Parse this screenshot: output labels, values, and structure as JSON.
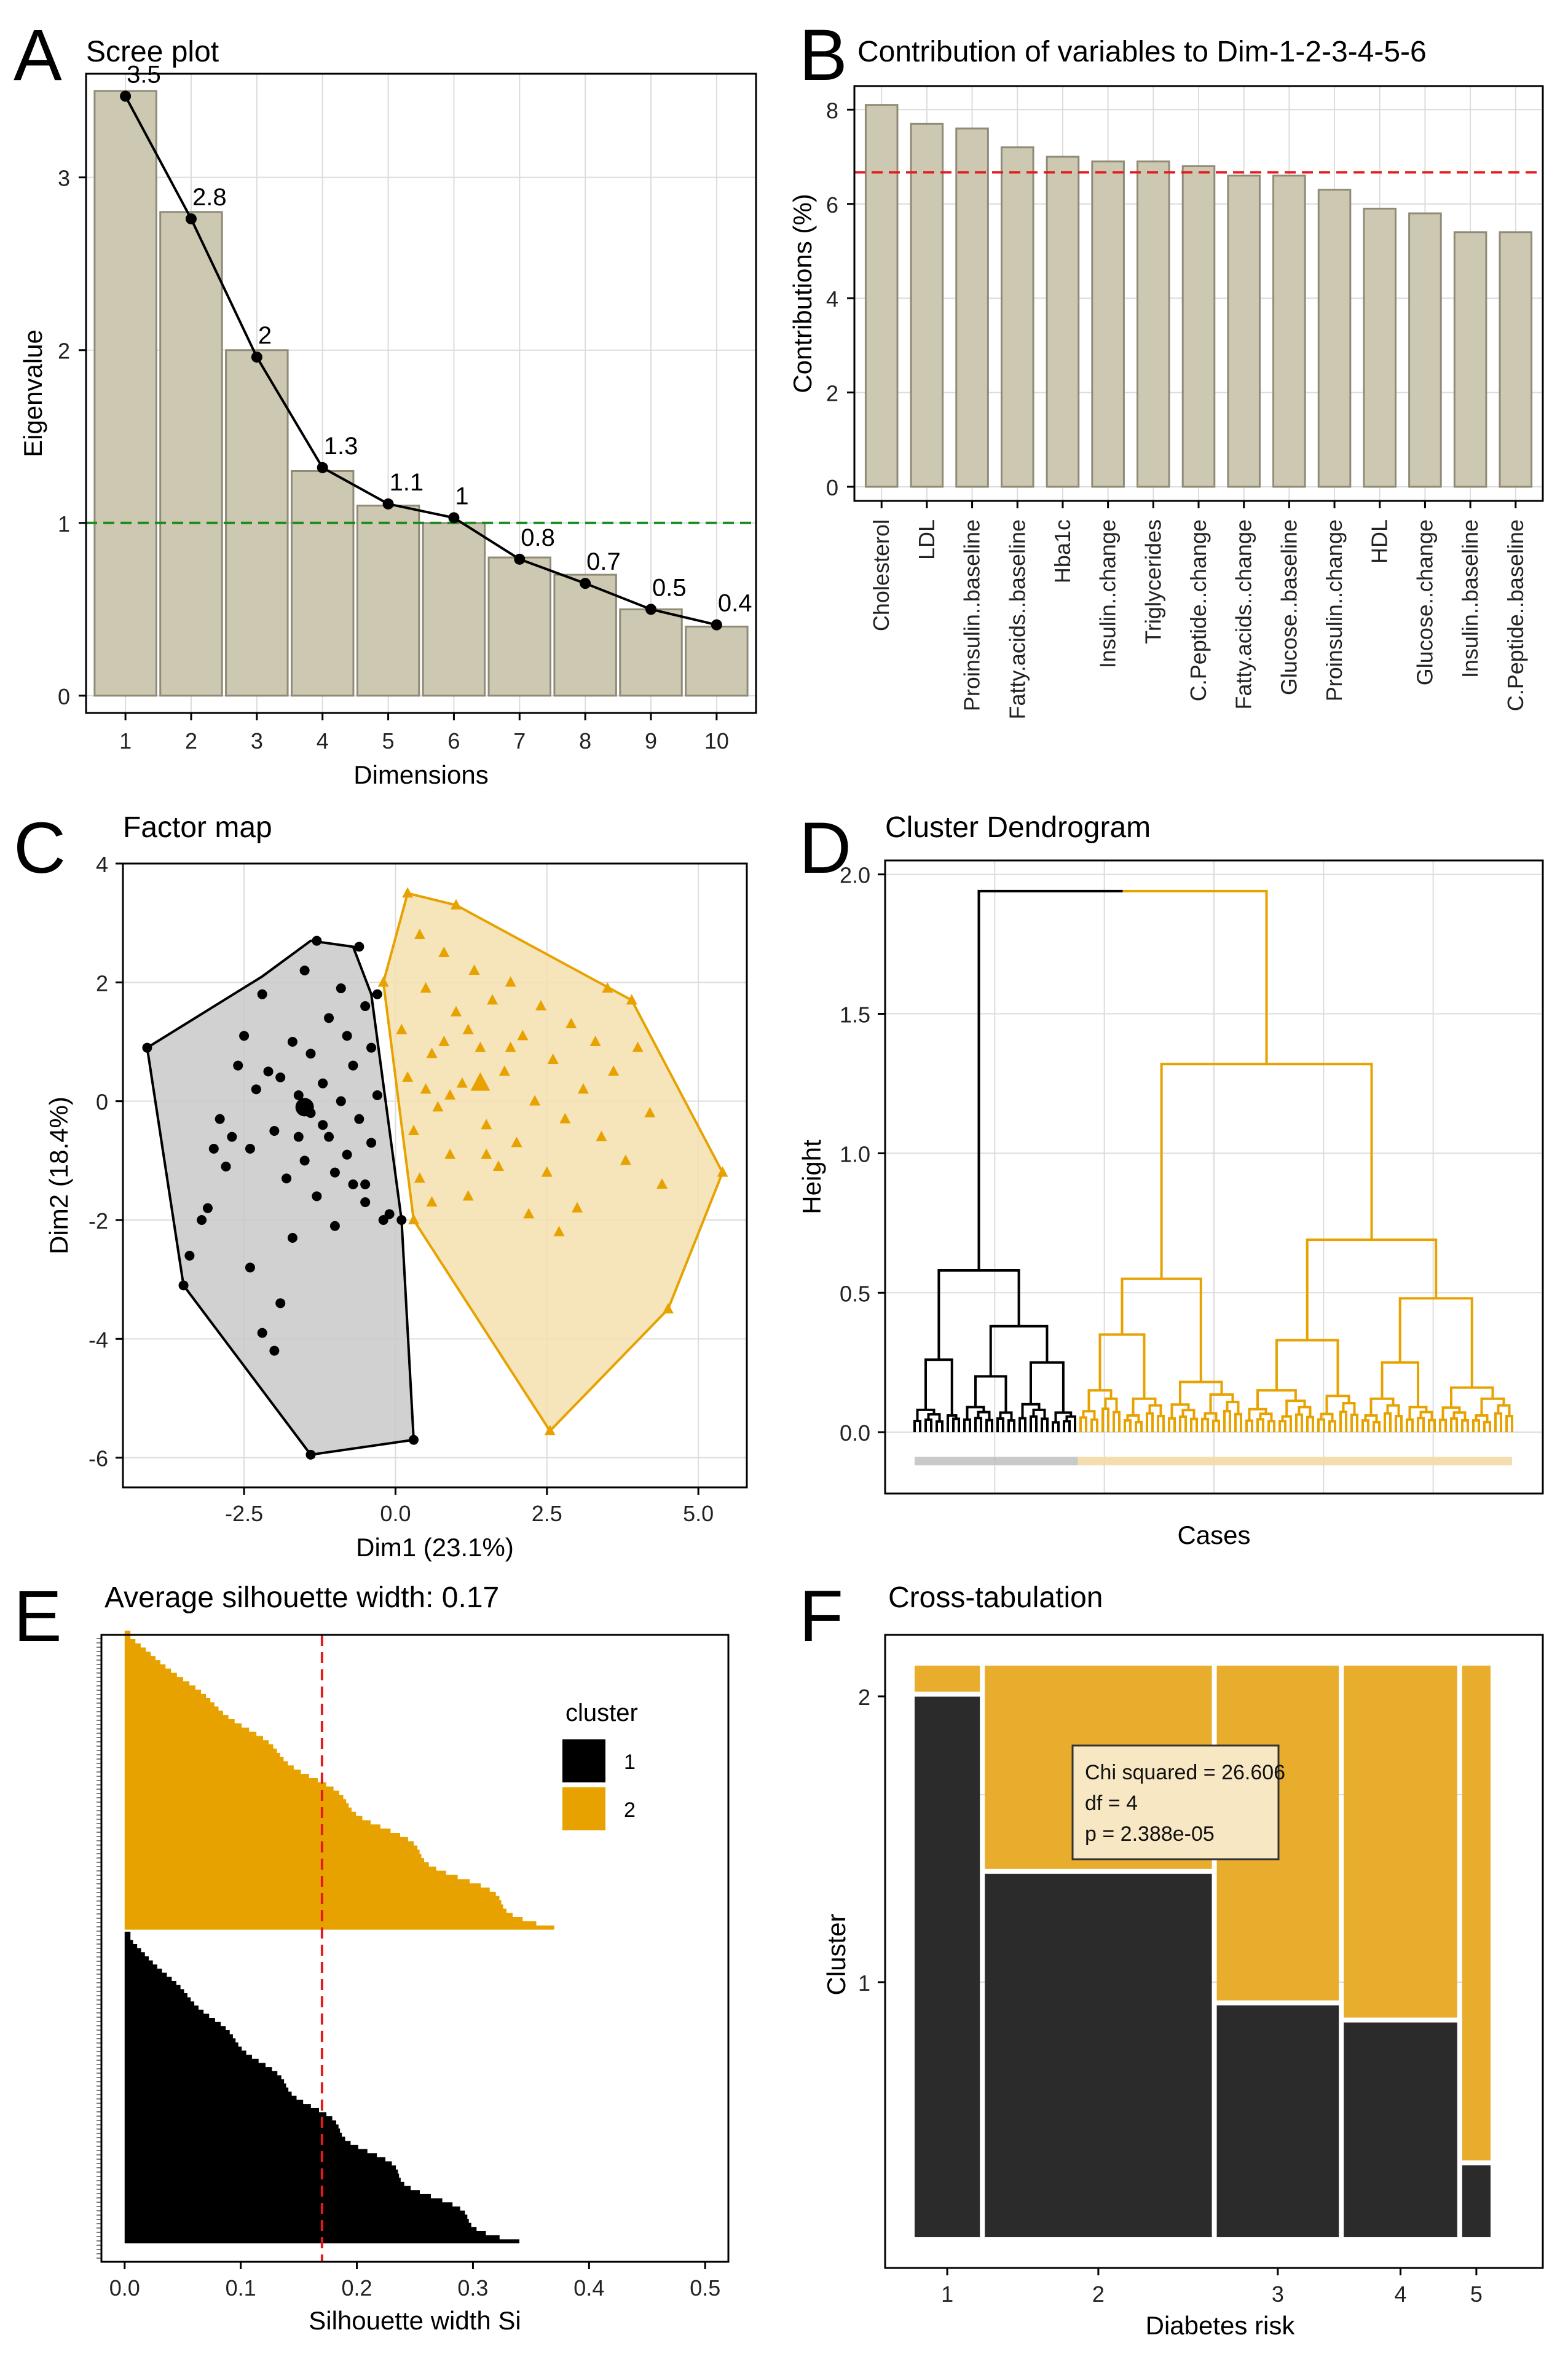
{
  "colors": {
    "bar": "#cdc8b1",
    "bar_stroke": "#8f8b78",
    "gold": "#e8a200",
    "gold_fill": "#f5dfae",
    "black": "#000000",
    "grey_fill": "#c9c9c9",
    "mosaic_dark": "#2b2b2b",
    "mosaic_gold": "#e8ad2c",
    "red": "#e41a1c",
    "green": "#1a8a1a",
    "grid": "#dcdcdc"
  },
  "panels": [
    {
      "letter": "A",
      "chart_data": {
        "type": "bar",
        "title": "Scree plot",
        "xlabel": "Dimensions",
        "ylabel": "Eigenvalue",
        "categories": [
          "1",
          "2",
          "3",
          "4",
          "5",
          "6",
          "7",
          "8",
          "9",
          "10"
        ],
        "values": [
          3.5,
          2.8,
          2.0,
          1.3,
          1.1,
          1.0,
          0.8,
          0.7,
          0.5,
          0.4
        ],
        "value_labels": [
          "3.5",
          "2.8",
          "2",
          "1.3",
          "1.1",
          "1",
          "0.8",
          "0.7",
          "0.5",
          "0.4"
        ],
        "line": [
          3.47,
          2.76,
          1.96,
          1.32,
          1.11,
          1.03,
          0.79,
          0.65,
          0.5,
          0.41
        ],
        "reference_line": 1.0,
        "yticks": [
          "0",
          "1",
          "2",
          "3"
        ],
        "ylim": [
          -0.1,
          3.6
        ]
      }
    },
    {
      "letter": "B",
      "chart_data": {
        "type": "bar",
        "title": "Contribution of variables to Dim-1-2-3-4-5-6",
        "xlabel": "",
        "ylabel": "Contributions (%)",
        "categories": [
          "Cholesterol",
          "LDL",
          "Proinsulin..baseline",
          "Fatty.acids..baseline",
          "Hba1c",
          "Insulin..change",
          "Triglycerides",
          "C.Peptide..change",
          "Fatty.acids..change",
          "Glucose..baseline",
          "Proinsulin..change",
          "HDL",
          "Glucose..change",
          "Insulin..baseline",
          "C.Peptide..baseline"
        ],
        "values": [
          8.1,
          7.7,
          7.6,
          7.2,
          7.0,
          6.9,
          6.9,
          6.8,
          6.6,
          6.6,
          6.3,
          5.9,
          5.8,
          5.4,
          5.4
        ],
        "reference_line": 6.67,
        "yticks": [
          "0",
          "2",
          "4",
          "6",
          "8"
        ],
        "ylim": [
          -0.3,
          8.5
        ]
      }
    },
    {
      "letter": "C",
      "chart_data": {
        "type": "scatter",
        "title": "Factor map",
        "xlabel": "Dim1 (23.1%)",
        "ylabel": "Dim2 (18.4%)",
        "xticks": [
          "-2.5",
          "0.0",
          "2.5",
          "5.0"
        ],
        "yticks": [
          "-6",
          "-4",
          "-2",
          "0",
          "2",
          "4"
        ],
        "xlim": [
          -4.5,
          5.8
        ],
        "ylim": [
          -6.5,
          4.0
        ],
        "series": [
          {
            "name": "1",
            "marker": "circle",
            "hull": [
              [
                -4.1,
                0.9
              ],
              [
                -2.2,
                2.1
              ],
              [
                -1.4,
                2.7
              ],
              [
                -0.7,
                2.6
              ],
              [
                -0.4,
                1.8
              ],
              [
                0.1,
                -2.0
              ],
              [
                0.3,
                -5.7
              ],
              [
                -1.4,
                -5.95
              ],
              [
                -3.5,
                -3.1
              ]
            ],
            "centroid": [
              -1.5,
              -0.1
            ],
            "points": [
              [
                -4.1,
                0.9
              ],
              [
                -3.5,
                -3.1
              ],
              [
                -3.4,
                -2.6
              ],
              [
                -3.1,
                -1.8
              ],
              [
                -3.0,
                -0.8
              ],
              [
                -2.9,
                -0.3
              ],
              [
                -2.8,
                -1.1
              ],
              [
                -2.6,
                0.6
              ],
              [
                -2.5,
                1.1
              ],
              [
                -2.4,
                -0.8
              ],
              [
                -2.3,
                0.2
              ],
              [
                -2.2,
                1.8
              ],
              [
                -2.2,
                -3.9
              ],
              [
                -2.0,
                -0.5
              ],
              [
                -1.9,
                0.4
              ],
              [
                -1.8,
                -1.3
              ],
              [
                -1.7,
                1.0
              ],
              [
                -1.7,
                -2.3
              ],
              [
                -1.6,
                0.1
              ],
              [
                -1.5,
                -1.0
              ],
              [
                -1.5,
                2.2
              ],
              [
                -1.4,
                -0.2
              ],
              [
                -1.4,
                0.8
              ],
              [
                -1.3,
                -1.6
              ],
              [
                -1.3,
                2.7
              ],
              [
                -1.2,
                0.3
              ],
              [
                -1.1,
                -0.6
              ],
              [
                -1.1,
                1.4
              ],
              [
                -1.0,
                -2.1
              ],
              [
                -0.9,
                0.0
              ],
              [
                -0.9,
                1.9
              ],
              [
                -0.8,
                -0.9
              ],
              [
                -0.8,
                1.1
              ],
              [
                -0.7,
                -1.4
              ],
              [
                -0.7,
                0.6
              ],
              [
                -0.6,
                2.6
              ],
              [
                -0.6,
                -0.3
              ],
              [
                -0.5,
                1.6
              ],
              [
                -0.5,
                -1.7
              ],
              [
                -0.4,
                0.9
              ],
              [
                -0.4,
                -0.7
              ],
              [
                -0.3,
                1.8
              ],
              [
                -0.2,
                -2.0
              ],
              [
                -0.1,
                -1.9
              ],
              [
                0.1,
                -2.0
              ],
              [
                0.3,
                -5.7
              ],
              [
                -1.4,
                -5.95
              ],
              [
                -2.0,
                -4.2
              ],
              [
                -2.4,
                -2.8
              ],
              [
                -2.7,
                -0.6
              ],
              [
                -3.2,
                -2.0
              ],
              [
                -1.9,
                -3.4
              ],
              [
                -1.6,
                -0.6
              ],
              [
                -1.0,
                -1.2
              ],
              [
                -0.5,
                -1.4
              ],
              [
                -0.3,
                0.1
              ],
              [
                -2.1,
                0.5
              ],
              [
                -1.2,
                -0.4
              ]
            ]
          },
          {
            "name": "2",
            "marker": "triangle",
            "hull": [
              [
                0.2,
                3.5
              ],
              [
                1.0,
                3.3
              ],
              [
                3.9,
                1.7
              ],
              [
                5.4,
                -1.2
              ],
              [
                4.5,
                -3.5
              ],
              [
                2.55,
                -5.55
              ],
              [
                0.3,
                -2.0
              ],
              [
                -0.2,
                2.0
              ]
            ],
            "centroid": [
              1.4,
              0.3
            ],
            "points": [
              [
                0.2,
                3.5
              ],
              [
                1.0,
                3.3
              ],
              [
                3.9,
                1.7
              ],
              [
                5.4,
                -1.2
              ],
              [
                4.5,
                -3.5
              ],
              [
                2.55,
                -5.55
              ],
              [
                0.3,
                -2.0
              ],
              [
                -0.2,
                2.0
              ],
              [
                0.1,
                1.2
              ],
              [
                0.2,
                0.4
              ],
              [
                0.3,
                -0.5
              ],
              [
                0.4,
                -1.3
              ],
              [
                0.5,
                1.9
              ],
              [
                0.6,
                0.8
              ],
              [
                0.7,
                -0.1
              ],
              [
                0.8,
                2.5
              ],
              [
                0.9,
                -0.9
              ],
              [
                1.0,
                1.5
              ],
              [
                1.1,
                0.3
              ],
              [
                1.2,
                -1.6
              ],
              [
                1.3,
                2.2
              ],
              [
                1.4,
                0.9
              ],
              [
                1.5,
                -0.4
              ],
              [
                1.6,
                1.7
              ],
              [
                1.7,
                -1.1
              ],
              [
                1.8,
                0.5
              ],
              [
                1.9,
                2.0
              ],
              [
                2.0,
                -0.7
              ],
              [
                2.1,
                1.1
              ],
              [
                2.2,
                -1.9
              ],
              [
                2.3,
                0.0
              ],
              [
                2.4,
                1.6
              ],
              [
                2.5,
                -1.2
              ],
              [
                2.6,
                0.7
              ],
              [
                2.8,
                -0.3
              ],
              [
                2.9,
                1.3
              ],
              [
                3.0,
                -1.8
              ],
              [
                3.1,
                0.2
              ],
              [
                3.3,
                1.0
              ],
              [
                3.4,
                -0.6
              ],
              [
                3.6,
                0.5
              ],
              [
                3.8,
                -1.0
              ],
              [
                4.0,
                0.9
              ],
              [
                4.2,
                -0.2
              ],
              [
                4.4,
                -1.4
              ],
              [
                0.4,
                2.8
              ],
              [
                0.6,
                -1.7
              ],
              [
                0.9,
                0.1
              ],
              [
                1.2,
                1.2
              ],
              [
                1.5,
                -0.9
              ],
              [
                1.9,
                0.9
              ],
              [
                2.7,
                -2.2
              ],
              [
                3.5,
                1.9
              ],
              [
                0.5,
                0.2
              ],
              [
                0.8,
                1.0
              ]
            ]
          }
        ]
      }
    },
    {
      "letter": "D",
      "chart_data": {
        "type": "line",
        "subtype": "dendrogram",
        "title": "Cluster Dendrogram",
        "xlabel": "Cases",
        "ylabel": "Height",
        "yticks": [
          "0.0",
          "0.5",
          "1.0",
          "1.5",
          "2.0"
        ],
        "ylim": [
          -0.22,
          2.05
        ],
        "root_height": 1.94,
        "clusters": [
          {
            "name": "1",
            "height": 0.58,
            "leaves_fraction": 0.31
          },
          {
            "name": "2",
            "height": 1.94,
            "leaves_fraction": 0.69
          }
        ],
        "merge_heights": [
          1.94,
          1.32,
          0.69,
          0.58,
          0.55,
          0.48,
          0.38,
          0.35,
          0.26,
          0.25
        ]
      }
    },
    {
      "letter": "E",
      "chart_data": {
        "type": "bar",
        "subtype": "silhouette",
        "title": "Average silhouette width: 0.17",
        "xlabel": "Silhouette width Si",
        "xticks": [
          "0.0",
          "0.1",
          "0.2",
          "0.3",
          "0.4",
          "0.5"
        ],
        "xlim": [
          -0.02,
          0.52
        ],
        "average_width": 0.17,
        "legend_title": "cluster",
        "legend": [
          "1",
          "2"
        ],
        "series": [
          {
            "name": "2",
            "max_width": 0.37
          },
          {
            "name": "1",
            "max_width": 0.34
          }
        ]
      }
    },
    {
      "letter": "F",
      "chart_data": {
        "type": "bar",
        "subtype": "mosaic",
        "title": "Cross-tabulation",
        "xlabel": "Diabetes risk",
        "ylabel": "Cluster",
        "categories": [
          "1",
          "2",
          "3",
          "4",
          "5"
        ],
        "yticks": [
          "1",
          "2"
        ],
        "column_widths": [
          0.115,
          0.4,
          0.215,
          0.2,
          0.05
        ],
        "cluster1_share": [
          0.95,
          0.64,
          0.41,
          0.38,
          0.13
        ],
        "annotation": [
          "Chi squared = 26.606",
          "df = 4",
          "p  = 2.388e-05"
        ]
      }
    }
  ]
}
